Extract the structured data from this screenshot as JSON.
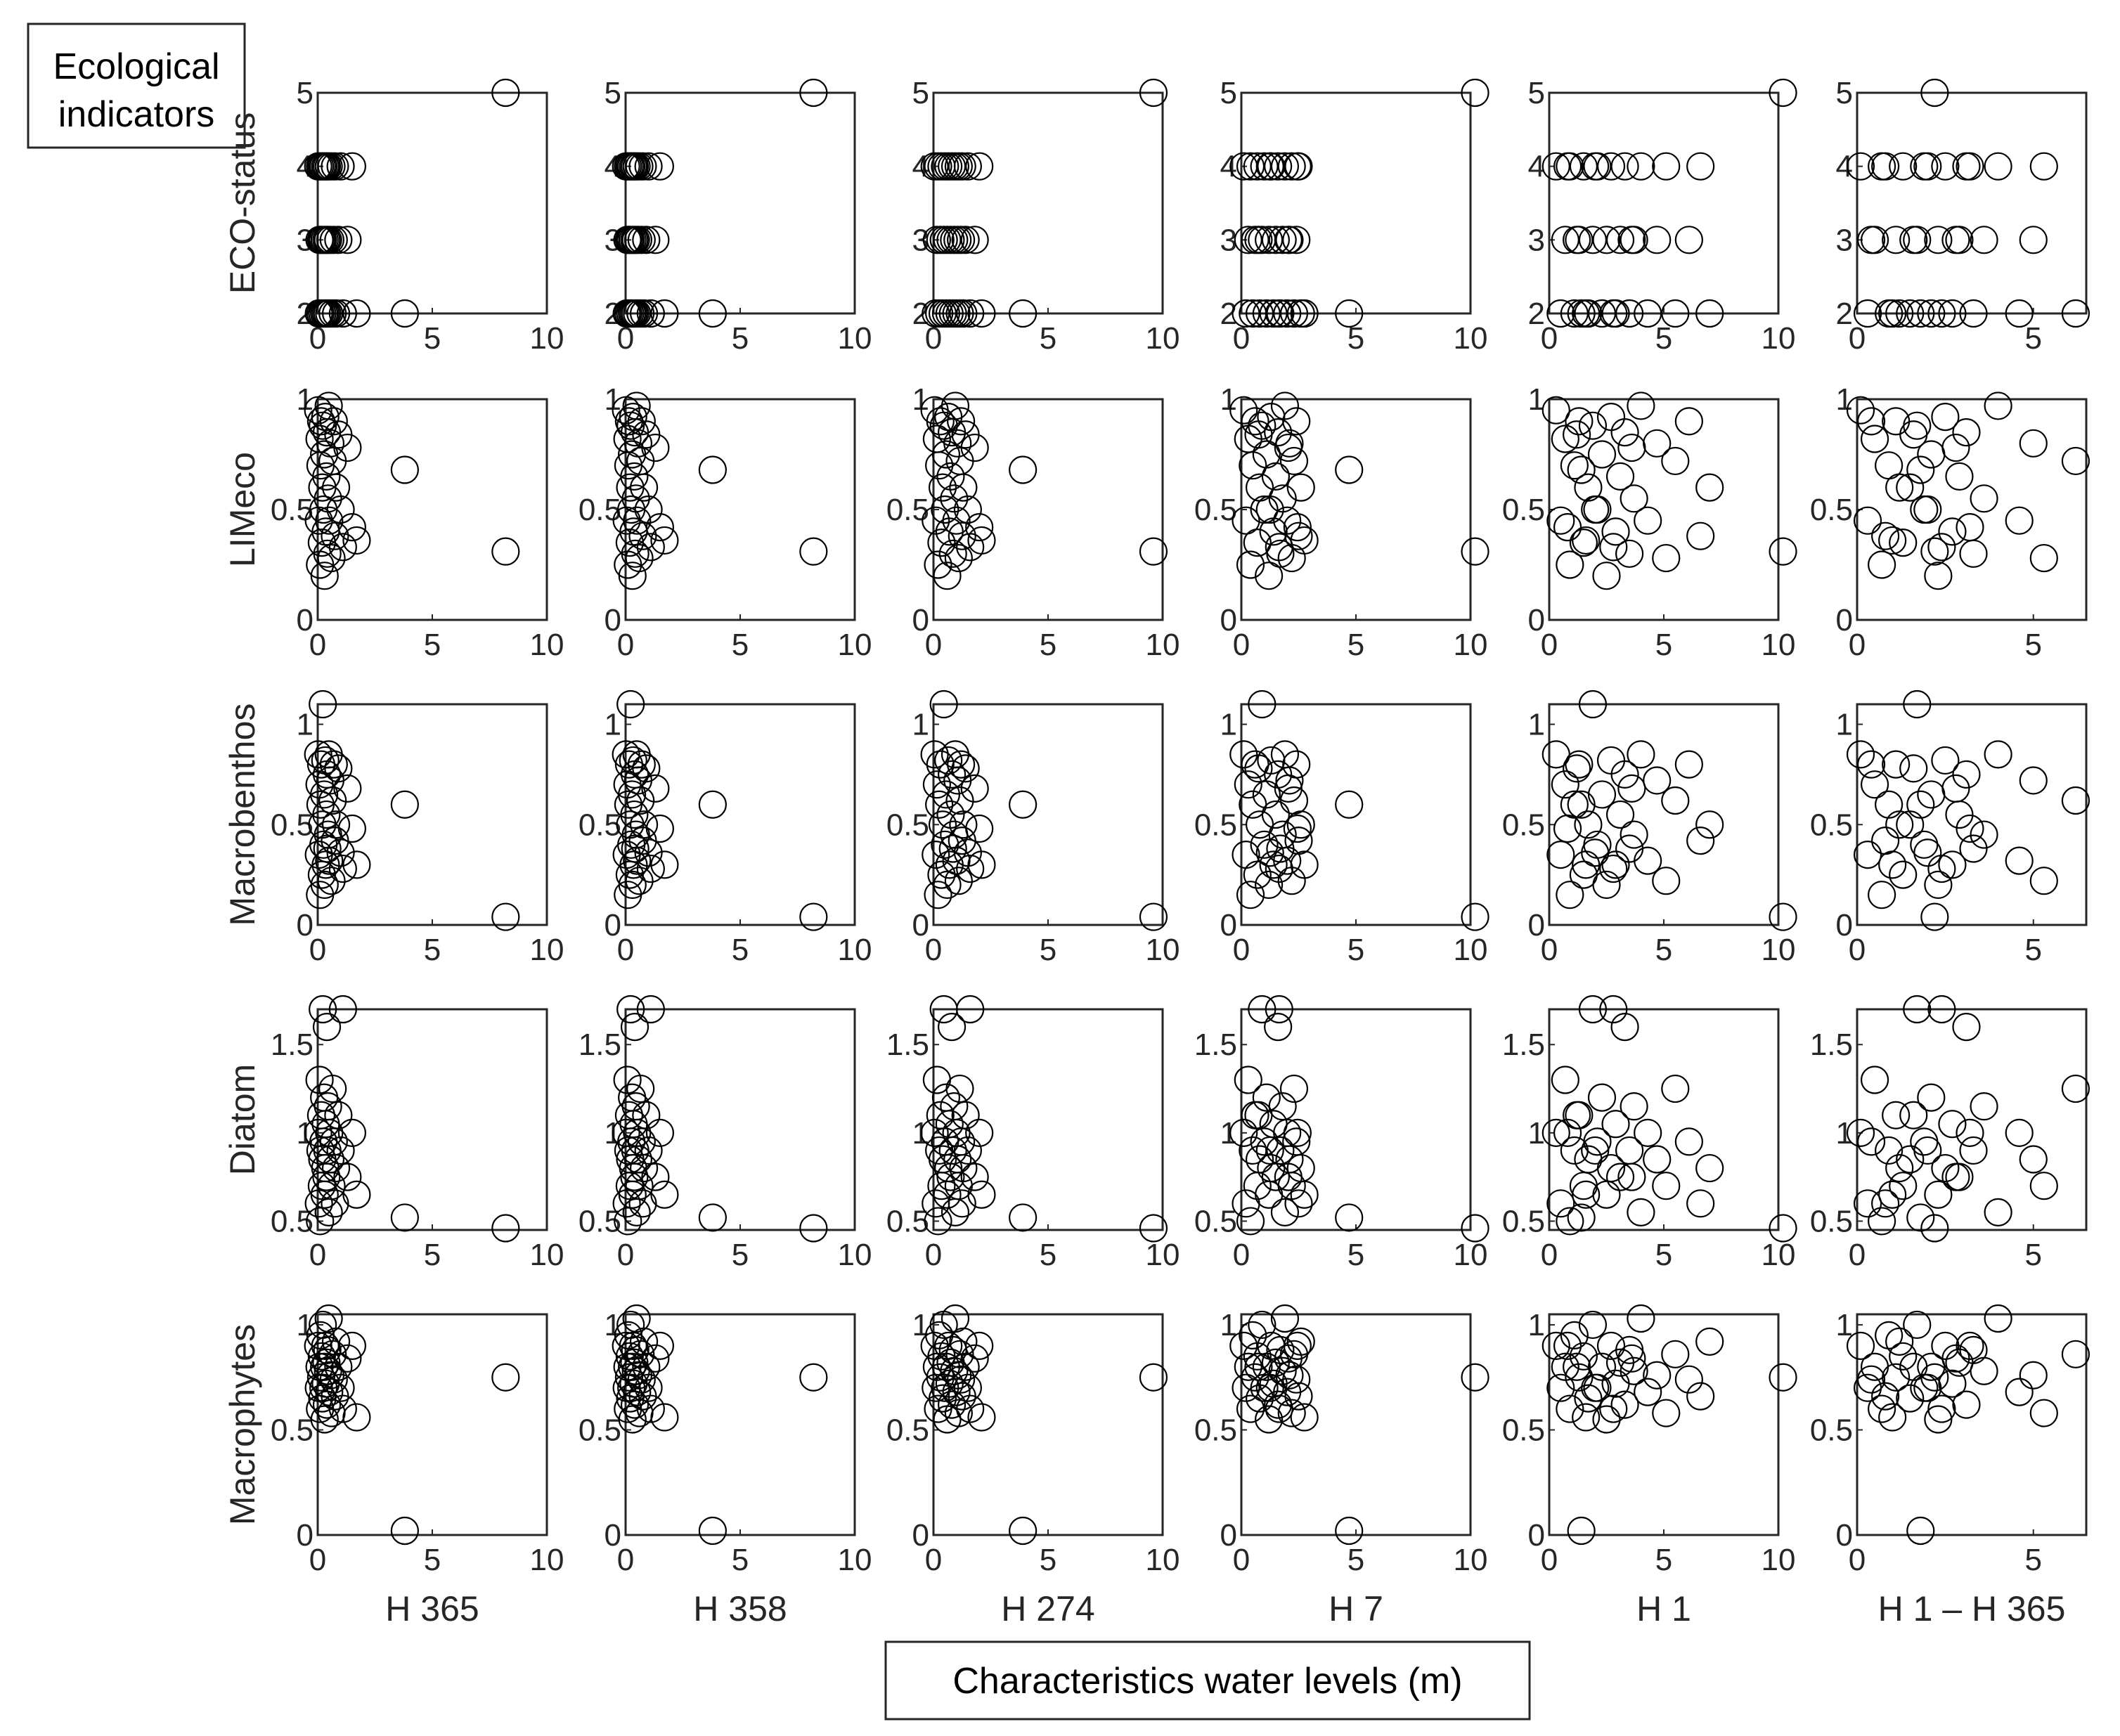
{
  "figure": {
    "legend_box_line1": "Ecological",
    "legend_box_line2": "indicators",
    "bottom_box": "Characteristics water levels (m)"
  },
  "colors": {
    "stroke": "#000000",
    "axis": "#262626",
    "background": "#ffffff"
  },
  "chart_data": {
    "type": "scatter",
    "title": "",
    "xlabel": "Characteristics water levels (m)",
    "ylabel": "Ecological indicators",
    "marker": "open-circle",
    "column_labels": [
      "H 365",
      "H 358",
      "H 274",
      "H 7",
      "H 1",
      "H 1 – H 365"
    ],
    "row_labels": [
      "ECO-status",
      "LIMeco",
      "Macrobenthos",
      "Diatom",
      "Macrophytes"
    ],
    "columns": [
      {
        "label": "H 365",
        "xlim": [
          0,
          10
        ],
        "xticks": [
          "0",
          "5",
          "10"
        ],
        "xtick_values": [
          0,
          5,
          10
        ],
        "x": [
          0.02,
          0.05,
          0.08,
          0.1,
          0.12,
          0.15,
          0.18,
          0.2,
          0.22,
          0.25,
          0.28,
          0.3,
          0.33,
          0.35,
          0.38,
          0.4,
          0.42,
          0.45,
          0.48,
          0.5,
          0.55,
          0.6,
          0.65,
          0.7,
          0.75,
          0.8,
          0.9,
          1.0,
          1.1,
          1.3,
          1.5,
          1.7,
          3.8,
          8.2
        ]
      },
      {
        "label": "H 358",
        "xlim": [
          0,
          10
        ],
        "xticks": [
          "0",
          "5",
          "10"
        ],
        "xtick_values": [
          0,
          5,
          10
        ],
        "x": [
          0.02,
          0.05,
          0.08,
          0.1,
          0.12,
          0.15,
          0.18,
          0.2,
          0.22,
          0.25,
          0.28,
          0.3,
          0.33,
          0.35,
          0.38,
          0.4,
          0.42,
          0.45,
          0.48,
          0.5,
          0.55,
          0.6,
          0.65,
          0.7,
          0.75,
          0.8,
          0.9,
          1.0,
          1.1,
          1.3,
          1.5,
          1.7,
          3.8,
          8.2
        ]
      },
      {
        "label": "H 274",
        "xlim": [
          0,
          10
        ],
        "xticks": [
          "0",
          "5",
          "10"
        ],
        "xtick_values": [
          0,
          5,
          10
        ],
        "x": [
          0.05,
          0.1,
          0.15,
          0.2,
          0.25,
          0.3,
          0.35,
          0.4,
          0.45,
          0.5,
          0.55,
          0.6,
          0.65,
          0.7,
          0.75,
          0.8,
          0.85,
          0.9,
          0.95,
          1.0,
          1.05,
          1.1,
          1.15,
          1.2,
          1.25,
          1.3,
          1.4,
          1.5,
          1.6,
          1.8,
          2.0,
          2.1,
          3.9,
          9.6
        ]
      },
      {
        "label": "H 7",
        "xlim": [
          0,
          10
        ],
        "xticks": [
          "0",
          "5",
          "10"
        ],
        "xtick_values": [
          0,
          5,
          10
        ],
        "x": [
          0.1,
          0.2,
          0.3,
          0.4,
          0.5,
          0.6,
          0.7,
          0.8,
          0.9,
          1.0,
          1.1,
          1.2,
          1.3,
          1.4,
          1.5,
          1.6,
          1.7,
          1.8,
          1.9,
          2.0,
          2.1,
          2.2,
          2.3,
          2.4,
          2.5,
          2.6,
          0.75,
          1.25,
          1.65,
          2.05,
          2.45,
          2.75,
          4.7,
          10.2
        ]
      },
      {
        "label": "H 1",
        "xlim": [
          0,
          10
        ],
        "xticks": [
          "0",
          "5",
          "10"
        ],
        "xtick_values": [
          0,
          5,
          10
        ],
        "x": [
          0.3,
          0.5,
          0.7,
          0.9,
          1.1,
          1.3,
          1.5,
          1.7,
          1.9,
          2.1,
          2.3,
          2.5,
          2.7,
          2.9,
          3.1,
          3.3,
          3.5,
          3.7,
          4.0,
          4.3,
          4.7,
          5.1,
          5.5,
          6.1,
          6.6,
          7.0,
          1.2,
          2.0,
          2.8,
          3.6,
          0.8,
          1.6,
          1.4,
          10.2
        ]
      },
      {
        "label": "H 1 – H 365",
        "xlim": [
          0,
          6.5
        ],
        "xticks": [
          "0",
          "5"
        ],
        "xtick_values": [
          0,
          5
        ],
        "x": [
          0.1,
          0.3,
          0.5,
          0.7,
          0.9,
          1.1,
          1.3,
          1.5,
          1.7,
          1.9,
          2.1,
          2.3,
          2.5,
          2.7,
          2.9,
          3.1,
          3.3,
          3.6,
          4.0,
          4.6,
          5.0,
          5.3,
          6.2,
          0.4,
          0.8,
          1.2,
          1.6,
          2.0,
          2.4,
          2.8,
          3.2,
          1.0,
          1.8,
          2.2
        ]
      }
    ],
    "rows": [
      {
        "label": "ECO-status",
        "ylim": [
          2,
          5
        ],
        "yticks": [
          "2",
          "3",
          "4",
          "5"
        ],
        "ytick_values": [
          2,
          3,
          4,
          5
        ],
        "y": [
          4,
          2,
          3,
          4,
          2,
          3,
          4,
          2,
          3,
          4,
          2,
          3,
          4,
          2,
          3,
          4,
          2,
          3,
          4,
          2,
          3,
          4,
          2,
          3,
          4,
          2,
          3,
          4,
          2,
          3,
          4,
          2,
          2,
          5
        ]
      },
      {
        "label": "LIMeco",
        "ylim": [
          0,
          1
        ],
        "yticks": [
          "0",
          "0.5",
          "1"
        ],
        "ytick_values": [
          0,
          0.5,
          1
        ],
        "y": [
          0.95,
          0.45,
          0.82,
          0.25,
          0.7,
          0.9,
          0.35,
          0.6,
          0.88,
          0.5,
          0.75,
          0.2,
          0.92,
          0.4,
          0.65,
          0.85,
          0.3,
          0.55,
          0.97,
          0.45,
          0.8,
          0.28,
          0.72,
          0.9,
          0.38,
          0.6,
          0.84,
          0.5,
          0.33,
          0.78,
          0.42,
          0.36,
          0.68,
          0.31
        ]
      },
      {
        "label": "Macrobenthos",
        "ylim": [
          0,
          1.1
        ],
        "yticks": [
          "0",
          "0.5",
          "1"
        ],
        "ytick_values": [
          0,
          0.5,
          1
        ],
        "y": [
          0.85,
          0.35,
          0.7,
          0.15,
          0.6,
          0.8,
          0.25,
          0.5,
          1.1,
          0.4,
          0.65,
          0.2,
          0.82,
          0.3,
          0.55,
          0.75,
          0.38,
          0.45,
          0.85,
          0.32,
          0.72,
          0.22,
          0.62,
          0.8,
          0.42,
          0.5,
          0.78,
          0.36,
          0.28,
          0.68,
          0.48,
          0.3,
          0.6,
          0.04
        ]
      },
      {
        "label": "Diatom",
        "ylim": [
          0.45,
          1.7
        ],
        "yticks": [
          "0.5",
          "1",
          "1.5"
        ],
        "ytick_values": [
          0.5,
          1,
          1.5
        ],
        "y": [
          1.0,
          0.6,
          1.3,
          0.5,
          0.9,
          1.1,
          0.7,
          0.85,
          1.7,
          0.95,
          1.2,
          0.65,
          0.8,
          1.05,
          0.75,
          1.6,
          0.9,
          1.15,
          0.55,
          1.0,
          0.85,
          0.7,
          1.25,
          0.95,
          0.6,
          0.8,
          1.1,
          0.9,
          1.7,
          0.75,
          1.0,
          0.65,
          0.52,
          0.46
        ]
      },
      {
        "label": "Macrophytes",
        "ylim": [
          0,
          1.05
        ],
        "yticks": [
          "0",
          "0.5",
          "1"
        ],
        "ytick_values": [
          0,
          0.5,
          1
        ],
        "y": [
          0.9,
          0.7,
          0.8,
          0.6,
          0.95,
          0.75,
          0.85,
          0.65,
          1.0,
          0.7,
          0.8,
          0.55,
          0.9,
          0.72,
          0.82,
          0.62,
          0.88,
          0.78,
          1.03,
          0.68,
          0.76,
          0.58,
          0.86,
          0.74,
          0.66,
          0.92,
          0.8,
          0.7,
          0.6,
          0.84,
          0.9,
          0.56,
          0.02,
          0.75
        ]
      }
    ]
  }
}
